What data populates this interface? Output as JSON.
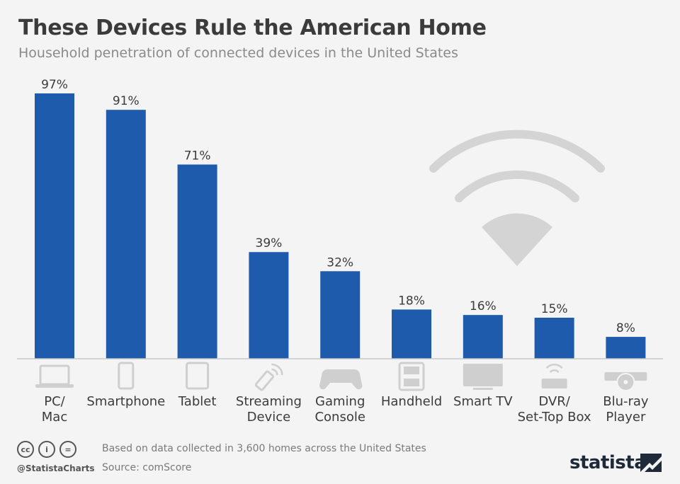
{
  "header": {
    "title": "These Devices Rule the American Home",
    "subtitle": "Household penetration of connected devices in the United States"
  },
  "chart_data": {
    "type": "bar",
    "categories": [
      [
        "PC/",
        "Mac"
      ],
      [
        "Smartphone"
      ],
      [
        "Tablet"
      ],
      [
        "Streaming",
        "Device"
      ],
      [
        "Gaming",
        "Console"
      ],
      [
        "Handheld"
      ],
      [
        "Smart TV"
      ],
      [
        "DVR/",
        "Set-Top Box"
      ],
      [
        "Blu-ray",
        "Player"
      ]
    ],
    "values": [
      97,
      91,
      71,
      39,
      32,
      18,
      16,
      15,
      8
    ],
    "value_labels": [
      "97%",
      "91%",
      "71%",
      "39%",
      "32%",
      "18%",
      "16%",
      "15%",
      "8%"
    ],
    "icons": [
      "laptop-icon",
      "smartphone-icon",
      "tablet-icon",
      "streaming-device-icon",
      "gamepad-icon",
      "handheld-icon",
      "smart-tv-icon",
      "dvr-router-icon",
      "bluray-player-icon"
    ],
    "unit": "%",
    "ylim": [
      0,
      100
    ],
    "grid": false,
    "bar_color": "#1f5bad",
    "decoration": "wifi-icon"
  },
  "footer": {
    "note": "Based on data collected in 3,600 homes across the United States",
    "source": "Source: comScore",
    "handle": "@StatistaCharts",
    "brand": "statista",
    "license_icons": [
      "cc-icon",
      "by-icon",
      "nd-icon"
    ],
    "license_symbols": [
      "cc",
      "i",
      "="
    ]
  }
}
